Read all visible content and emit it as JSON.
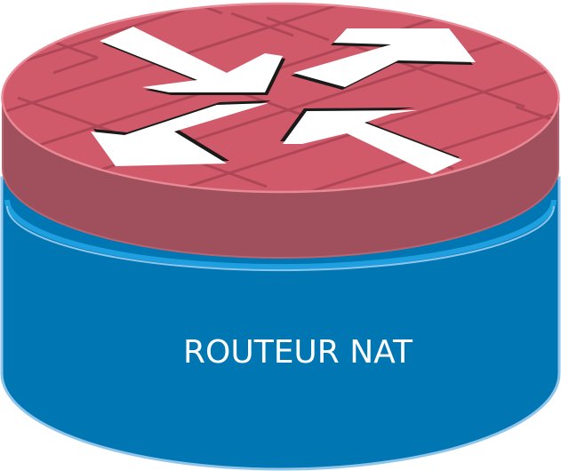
{
  "diagram": {
    "label": "ROUTEUR NAT",
    "icon": "nat-router-icon",
    "colors": {
      "top_face": "#d15a6a",
      "top_edge": "#e88a96",
      "brick_lines": "#a94452",
      "band": "#a0505c",
      "band_edge": "#b86470",
      "body": "#0077b3",
      "body_rim": "#8fc5ea",
      "rim_highlight": "#1ea0e0",
      "arrows": "#ffffff",
      "arrow_shadow": "#1a1a1a",
      "label": "#ffffff"
    }
  }
}
